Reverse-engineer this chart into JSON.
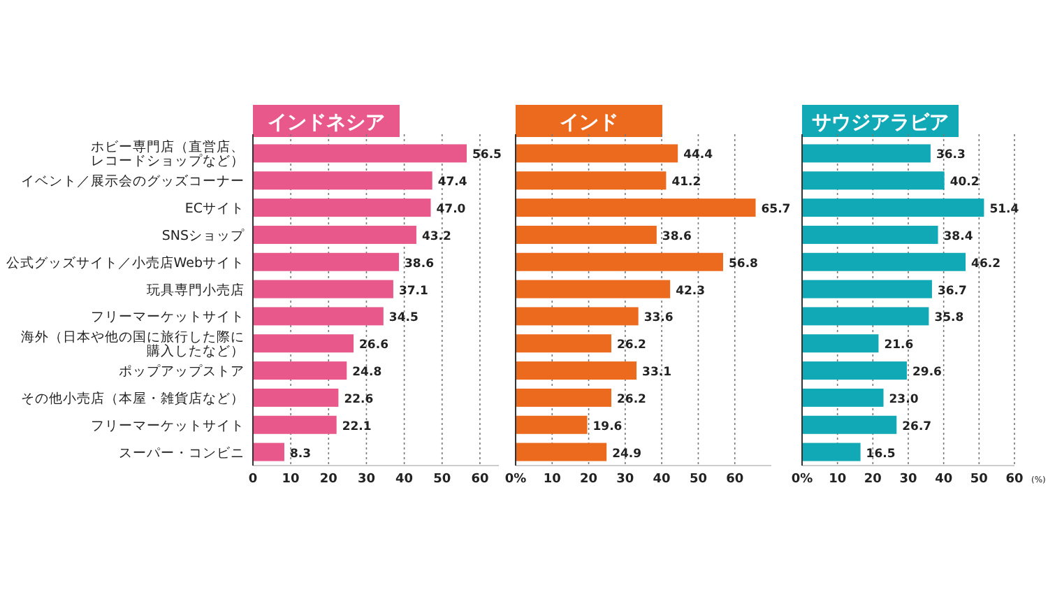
{
  "chart_data": [
    {
      "type": "bar",
      "orientation": "horizontal",
      "title": "インドネシア",
      "categories": [
        "ホビー専門店（直営店、レコードショップなど）",
        "イベント／展示会のグッズコーナー",
        "ECサイト",
        "SNSショップ",
        "公式グッズサイト／小売店Webサイト",
        "玩具専門小売店",
        "フリーマーケットサイト",
        "海外（日本や他の国に旅行した際に購入したなど）",
        "ポップアップストア",
        "その他小売店（本屋・雑貨店など）",
        "フリーマーケットサイト",
        "スーパー・コンビニ"
      ],
      "series": [
        {
          "color": "#e8588a",
          "values": [
            56.5,
            47.4,
            47.0,
            43.2,
            38.6,
            37.1,
            34.5,
            26.6,
            24.8,
            22.6,
            22.1,
            8.3
          ]
        }
      ],
      "xlim": [
        0,
        65
      ],
      "xticks": [
        0,
        10,
        20,
        30,
        40,
        50,
        60
      ],
      "grid": "x",
      "value_labels": [
        "56.5",
        "47.4",
        "47.0",
        "43.2",
        "38.6",
        "37.1",
        "34.5",
        "26.6",
        "24.8",
        "22.6",
        "22.1",
        "8.3"
      ]
    },
    {
      "type": "bar",
      "orientation": "horizontal",
      "title": "インド",
      "categories": [
        null,
        null,
        null,
        null,
        null,
        null,
        null,
        null,
        null,
        null,
        null,
        null
      ],
      "series": [
        {
          "color": "#ec6a1e",
          "values": [
            44.4,
            41.2,
            65.7,
            38.6,
            56.8,
            42.3,
            33.6,
            26.2,
            33.1,
            26.2,
            19.6,
            24.9
          ]
        }
      ],
      "xlim": [
        0,
        70
      ],
      "xticks": [
        {
          "value": 0,
          "label": "0%"
        },
        10,
        20,
        30,
        40,
        50,
        60
      ],
      "grid": "x",
      "value_labels": [
        "44.4",
        "41.2",
        "65.7",
        "38.6",
        "56.8",
        "42.3",
        "33.6",
        "26.2",
        "33.1",
        "26.2",
        "19.6",
        "24.9"
      ],
      "tick_labels": "x"
    },
    {
      "type": "bar",
      "orientation": "horizontal",
      "title": "サウジアラビア",
      "xlabel": "(%)",
      "categories": [
        null,
        null,
        null,
        null,
        null,
        null,
        null,
        null,
        null,
        null,
        null,
        null
      ],
      "series": [
        {
          "color": "#12a9b7",
          "values": [
            36.3,
            40.2,
            51.4,
            38.4,
            46.2,
            36.7,
            35.8,
            21.6,
            29.6,
            23.0,
            26.7,
            16.5
          ]
        }
      ],
      "xlim": [
        0,
        60
      ],
      "xticks": [
        {
          "value": 0,
          "label": "0%"
        },
        10,
        20,
        30,
        40,
        50,
        60
      ],
      "grid": "x",
      "value_labels": [
        "36.3",
        "40.2",
        "51.4",
        "38.4",
        "46.2",
        "36.7",
        "35.8",
        "21.6",
        "29.6",
        "23.0",
        "26.7",
        "16.5"
      ],
      "tick_labels": "x"
    }
  ]
}
